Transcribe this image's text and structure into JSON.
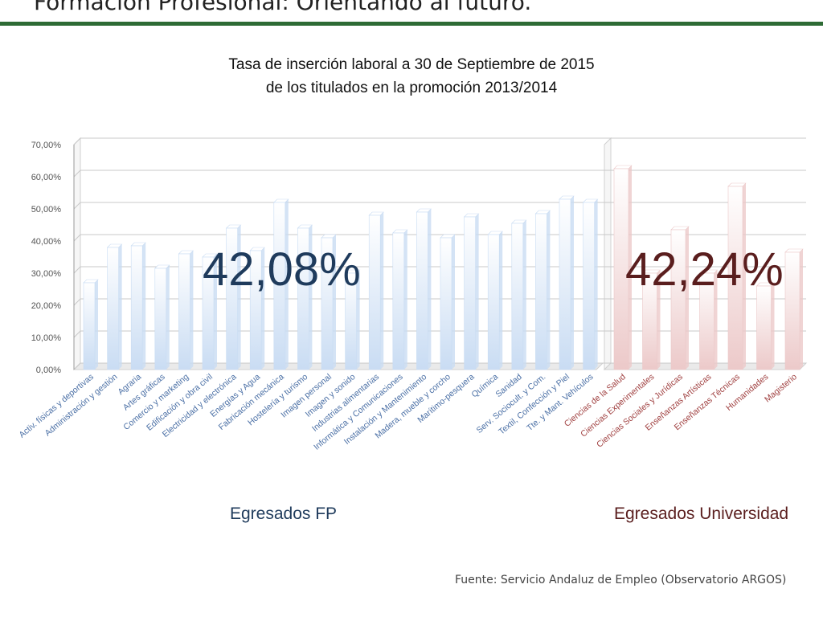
{
  "slide": {
    "title": "Formación Profesional: Orientando al futuro.",
    "source": "Fuente: Servicio Andaluz de Empleo (Observatorio ARGOS)"
  },
  "chart_data": {
    "type": "bar",
    "title": "Tasa de inserción laboral a 30 de Septiembre de 2015",
    "subtitle": "de los titulados en la promoción 2013/2014",
    "ylim": [
      0,
      70
    ],
    "yticks": [
      "0,00%",
      "10,00%",
      "20,00%",
      "30,00%",
      "40,00%",
      "50,00%",
      "60,00%",
      "70,00%"
    ],
    "grid": true,
    "groups": [
      {
        "name": "Egresados FP",
        "average_label": "42,08%",
        "color": "#c9dcf3",
        "label_color": "#4a6fa5",
        "categories": [
          "Activ. físicas y deportivas",
          "Administración y gestión",
          "Agraria",
          "Artes gráficas",
          "Comercio y marketing",
          "Edificación y obra civil",
          "Electricidad y electrónica",
          "Energías y Agua",
          "Fabricación mecánica",
          "Hostelería y turismo",
          "Imagen personal",
          "Imagen y sonido",
          "Industrias alimentarias",
          "Informática y Comunicaciones",
          "Instalación y Mantenimiento",
          "Madera, mueble y corcho",
          "Marítimo-pesquera",
          "Química",
          "Sanidad",
          "Serv. Sociocult. y Com.",
          "Textil, Confección y Piel",
          "Tte. y Mant. Vehículos"
        ],
        "values": [
          27,
          38,
          38.5,
          31.5,
          36,
          35,
          44,
          37,
          52,
          44,
          41,
          30,
          48,
          42.5,
          49,
          41,
          47.5,
          42,
          45.5,
          48.5,
          53,
          52
        ]
      },
      {
        "name": "Egresados Universidad",
        "average_label": "42,24%",
        "color": "#ecc9c9",
        "label_color": "#a04040",
        "categories": [
          "Ciencias de la Salud",
          "Ciencias Experimentales",
          "Ciencias Sociales y Jurídicas",
          "Enseñanzas Artísticas",
          "Enseñanzas Técnicas",
          "Humanidades",
          "Magisterio"
        ],
        "values": [
          62.5,
          30,
          43.5,
          30,
          57,
          26,
          36.5
        ]
      }
    ]
  }
}
